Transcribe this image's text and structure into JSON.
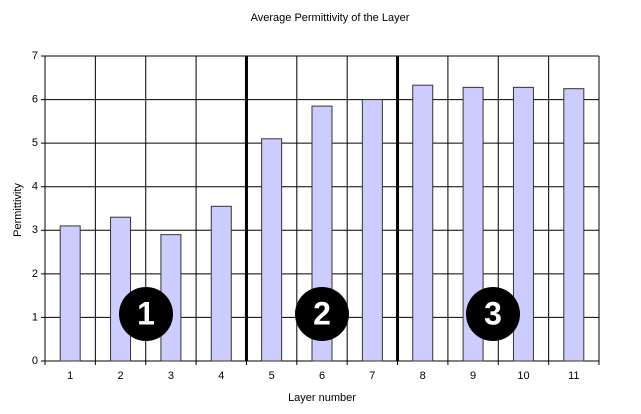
{
  "chart_data": {
    "type": "bar",
    "title": "Average Permittivity of the Layer",
    "x_label": "Layer number",
    "y_label": "Permittivity",
    "categories": [
      "1",
      "2",
      "3",
      "4",
      "5",
      "6",
      "7",
      "8",
      "9",
      "10",
      "11"
    ],
    "values": [
      3.1,
      3.3,
      2.9,
      3.55,
      5.1,
      5.85,
      6.0,
      6.33,
      6.28,
      6.28,
      6.25
    ],
    "color": "#ccccff",
    "ylim": [
      0,
      7
    ],
    "yticks": [
      0,
      1,
      2,
      3,
      4,
      5,
      6,
      7
    ],
    "grid": true,
    "annotations": [
      "1",
      "2",
      "3"
    ]
  }
}
